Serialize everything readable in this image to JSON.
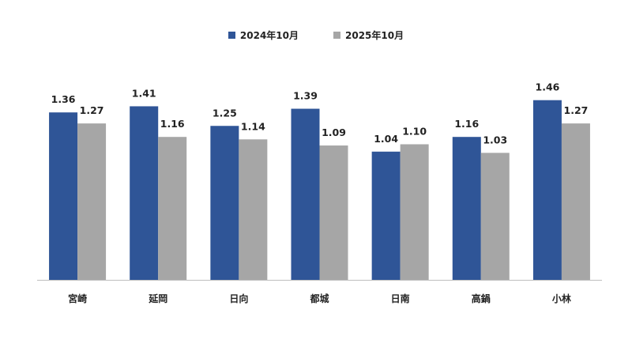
{
  "chart_data": {
    "type": "bar",
    "categories": [
      "宮崎",
      "延岡",
      "日向",
      "都城",
      "日南",
      "高鍋",
      "小林"
    ],
    "series": [
      {
        "name": "2024年10月",
        "color": "#2f5597",
        "values": [
          1.36,
          1.41,
          1.25,
          1.39,
          1.04,
          1.16,
          1.46
        ]
      },
      {
        "name": "2025年10月",
        "color": "#a6a6a6",
        "values": [
          1.27,
          1.16,
          1.14,
          1.09,
          1.1,
          1.03,
          1.27
        ]
      }
    ],
    "ylim": [
      0,
      1.6
    ],
    "grid": false,
    "legend_position": "top-center",
    "value_labels": [
      "1.36",
      "1.27",
      "1.41",
      "1.16",
      "1.25",
      "1.14",
      "1.39",
      "1.09",
      "1.04",
      "1.10",
      "1.16",
      "1.03",
      "1.46",
      "1.27"
    ]
  }
}
